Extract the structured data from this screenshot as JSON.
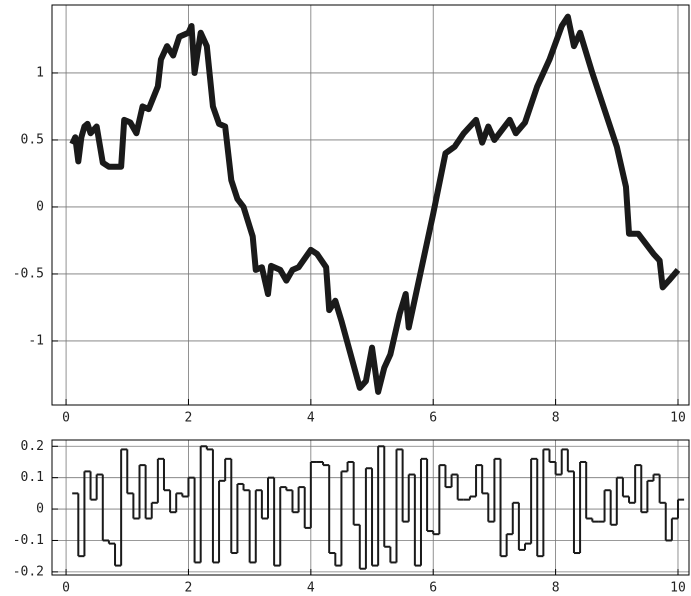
{
  "chart_data": [
    {
      "type": "line",
      "color": "#1a1a1a",
      "grid": true,
      "x": [
        0.1,
        0.15,
        0.2,
        0.25,
        0.3,
        0.35,
        0.4,
        0.5,
        0.6,
        0.7,
        0.9,
        0.95,
        1.05,
        1.15,
        1.25,
        1.35,
        1.5,
        1.55,
        1.65,
        1.75,
        1.85,
        2.0,
        2.05,
        2.1,
        2.2,
        2.3,
        2.4,
        2.5,
        2.6,
        2.7,
        2.8,
        2.9,
        3.05,
        3.1,
        3.2,
        3.3,
        3.35,
        3.5,
        3.6,
        3.7,
        3.8,
        4.0,
        4.1,
        4.25,
        4.3,
        4.4,
        4.5,
        4.65,
        4.8,
        4.9,
        5.0,
        5.1,
        5.2,
        5.3,
        5.45,
        5.55,
        5.6,
        6.0,
        6.2,
        6.35,
        6.5,
        6.7,
        6.8,
        6.9,
        7.0,
        7.25,
        7.35,
        7.5,
        7.7,
        7.9,
        8.1,
        8.2,
        8.3,
        8.4,
        8.6,
        9.0,
        9.15,
        9.2,
        9.35,
        9.6,
        9.7,
        9.75,
        9.85,
        10.0
      ],
      "values": [
        0.47,
        0.52,
        0.34,
        0.52,
        0.6,
        0.62,
        0.55,
        0.6,
        0.33,
        0.3,
        0.3,
        0.65,
        0.63,
        0.55,
        0.75,
        0.73,
        0.9,
        1.1,
        1.2,
        1.13,
        1.27,
        1.3,
        1.35,
        1.0,
        1.3,
        1.2,
        0.75,
        0.62,
        0.6,
        0.2,
        0.06,
        0.0,
        -0.22,
        -0.47,
        -0.45,
        -0.65,
        -0.44,
        -0.47,
        -0.55,
        -0.47,
        -0.45,
        -0.32,
        -0.35,
        -0.45,
        -0.77,
        -0.7,
        -0.85,
        -1.1,
        -1.35,
        -1.3,
        -1.05,
        -1.38,
        -1.2,
        -1.1,
        -0.8,
        -0.65,
        -0.9,
        -0.05,
        0.4,
        0.45,
        0.55,
        0.65,
        0.48,
        0.6,
        0.5,
        0.65,
        0.55,
        0.63,
        0.9,
        1.1,
        1.35,
        1.42,
        1.2,
        1.3,
        1.0,
        0.45,
        0.15,
        -0.2,
        -0.2,
        -0.35,
        -0.4,
        -0.6,
        -0.55,
        -0.47
      ],
      "xlim": [
        -0.23,
        10.18
      ],
      "ylim": [
        -1.478,
        1.507
      ],
      "xticks": [
        0,
        2,
        4,
        6,
        8,
        10
      ],
      "yticks": [
        -1,
        -0.5,
        0,
        0.5,
        1
      ]
    },
    {
      "type": "step",
      "color": "#1a1a1a",
      "grid": true,
      "x": [
        0.1,
        0.2,
        0.3,
        0.4,
        0.5,
        0.6,
        0.7,
        0.8,
        0.9,
        1.0,
        1.1,
        1.2,
        1.3,
        1.4,
        1.5,
        1.6,
        1.7,
        1.8,
        1.9,
        2.0,
        2.1,
        2.2,
        2.3,
        2.4,
        2.5,
        2.6,
        2.7,
        2.8,
        2.9,
        3.0,
        3.1,
        3.2,
        3.3,
        3.4,
        3.5,
        3.6,
        3.7,
        3.8,
        3.9,
        4.0,
        4.1,
        4.2,
        4.3,
        4.4,
        4.5,
        4.6,
        4.7,
        4.8,
        4.9,
        5.0,
        5.1,
        5.2,
        5.3,
        5.4,
        5.5,
        5.6,
        5.7,
        5.8,
        5.9,
        6.0,
        6.1,
        6.2,
        6.3,
        6.4,
        6.5,
        6.6,
        6.7,
        6.8,
        6.9,
        7.0,
        7.1,
        7.2,
        7.3,
        7.4,
        7.5,
        7.6,
        7.7,
        7.8,
        7.9,
        8.0,
        8.1,
        8.2,
        8.3,
        8.4,
        8.5,
        8.6,
        8.7,
        8.8,
        8.9,
        9.0,
        9.1,
        9.2,
        9.3,
        9.4,
        9.5,
        9.6,
        9.7,
        9.8,
        9.9,
        10.0
      ],
      "values": [
        0.05,
        -0.15,
        0.12,
        0.03,
        0.11,
        -0.1,
        -0.11,
        -0.18,
        0.19,
        0.05,
        -0.03,
        0.14,
        -0.03,
        0.02,
        0.16,
        0.06,
        -0.01,
        0.05,
        0.04,
        0.1,
        -0.17,
        0.2,
        0.19,
        -0.17,
        0.09,
        0.16,
        -0.14,
        0.08,
        0.06,
        -0.17,
        0.06,
        -0.03,
        0.1,
        -0.18,
        0.07,
        0.06,
        -0.01,
        0.07,
        -0.06,
        0.15,
        0.15,
        0.14,
        -0.14,
        -0.18,
        0.12,
        0.15,
        -0.05,
        -0.19,
        0.13,
        -0.18,
        0.2,
        -0.12,
        -0.17,
        0.19,
        -0.04,
        0.11,
        -0.18,
        0.16,
        -0.07,
        -0.08,
        0.14,
        0.07,
        0.11,
        0.03,
        0.03,
        0.04,
        0.14,
        0.05,
        -0.04,
        0.16,
        -0.15,
        -0.08,
        0.02,
        -0.13,
        -0.11,
        0.16,
        -0.15,
        0.19,
        0.15,
        0.11,
        0.19,
        0.12,
        -0.14,
        0.15,
        -0.03,
        -0.04,
        -0.04,
        0.06,
        -0.05,
        0.1,
        0.04,
        0.02,
        0.14,
        -0.01,
        0.09,
        0.11,
        0.02,
        -0.1,
        -0.03,
        0.03
      ],
      "xlim": [
        -0.23,
        10.18
      ],
      "ylim": [
        -0.21,
        0.22
      ],
      "xticks": [
        0,
        2,
        4,
        6,
        8,
        10
      ],
      "yticks": [
        -0.2,
        -0.1,
        0,
        0.1,
        0.2
      ]
    }
  ]
}
